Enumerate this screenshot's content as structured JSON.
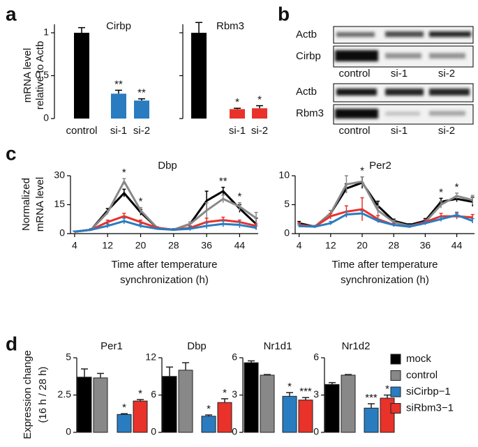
{
  "panel_labels": [
    "a",
    "b",
    "c",
    "d"
  ],
  "blots": [
    {
      "rows": [
        "Actb",
        "Cirbp"
      ],
      "lanes": [
        "control",
        "si-1",
        "si-2"
      ]
    },
    {
      "rows": [
        "Actb",
        "Rbm3"
      ],
      "lanes": [
        "control",
        "si-1",
        "si-2"
      ]
    }
  ],
  "chart_data": [
    {
      "type": "bar",
      "title": "Cirbp",
      "ylabel": [
        "mRNA level",
        "relative to Actb"
      ],
      "categories": [
        "control",
        "si-1",
        "si-2"
      ],
      "values": [
        1.0,
        0.29,
        0.21
      ],
      "errors": [
        0.06,
        0.04,
        0.02
      ],
      "colors": [
        "#000000",
        "#2a7cc0",
        "#2a7cc0"
      ],
      "annotations": [
        null,
        "**",
        "**"
      ],
      "ylim": [
        0,
        1.1
      ],
      "yticks": [
        0,
        0.5,
        1
      ],
      "ytick_labels": true
    },
    {
      "type": "bar",
      "title": "Rbm3",
      "categories": [
        null,
        "si-1",
        "si-2"
      ],
      "values": [
        1.0,
        0.11,
        0.12
      ],
      "errors": [
        0.12,
        0.01,
        0.03
      ],
      "colors": [
        "#000000",
        "#e8322a",
        "#e8322a"
      ],
      "annotations": [
        null,
        "*",
        "*"
      ],
      "ylim": [
        0,
        1.1
      ],
      "yticks": [
        0,
        0.5,
        1
      ],
      "ytick_labels": false
    },
    {
      "type": "line",
      "title": "Dbp",
      "ylabel": [
        "Normalized",
        "mRNA level"
      ],
      "xlabel": [
        "Time after temperature",
        "synchronization (h)"
      ],
      "x": [
        4,
        8,
        12,
        16,
        20,
        24,
        28,
        32,
        36,
        40,
        44,
        48
      ],
      "series": [
        {
          "color": "#000000",
          "values": [
            1,
            2,
            12,
            21,
            11,
            3,
            2,
            5,
            17,
            22,
            13,
            5
          ],
          "errors": [
            0.3,
            0.5,
            1,
            2,
            1.5,
            0.5,
            0.5,
            1,
            5,
            2,
            2,
            3
          ]
        },
        {
          "color": "#888888",
          "values": [
            1,
            2,
            11,
            27,
            12,
            3,
            2,
            5,
            12,
            18,
            14,
            8
          ],
          "errors": [
            0.3,
            0.5,
            1,
            1.5,
            1.5,
            0.5,
            0.5,
            1,
            4,
            2,
            2,
            3
          ]
        },
        {
          "color": "#e8322a",
          "values": [
            1,
            2,
            6,
            9,
            6,
            3,
            2,
            3,
            6,
            7,
            6,
            4
          ],
          "errors": [
            0.3,
            0.5,
            1,
            1.5,
            1,
            0.5,
            0.5,
            1,
            2,
            1.5,
            1,
            1
          ]
        },
        {
          "color": "#2a7cc0",
          "values": [
            1,
            2,
            4,
            6.5,
            4,
            2.5,
            2,
            2.5,
            4,
            5,
            4.5,
            3
          ],
          "errors": [
            0.3,
            0.5,
            1,
            1.5,
            1,
            0.5,
            0.5,
            1,
            1.5,
            1.5,
            1.5,
            1
          ]
        }
      ],
      "annotations": [
        {
          "x": 16,
          "text": "*"
        },
        {
          "x": 20,
          "text": "*"
        },
        {
          "x": 40,
          "text": "**"
        },
        {
          "x": 44,
          "text": "*"
        }
      ],
      "xlim": [
        3,
        48.5
      ],
      "xticks": [
        4,
        12,
        20,
        28,
        36,
        44
      ],
      "ylim": [
        0,
        30
      ],
      "yticks": [
        0,
        15,
        30
      ]
    },
    {
      "type": "line",
      "title": "Per2",
      "xlabel": [
        "Time after temperature",
        "synchronization (h)"
      ],
      "x": [
        4,
        8,
        12,
        16,
        20,
        24,
        28,
        32,
        36,
        40,
        44,
        48
      ],
      "series": [
        {
          "color": "#000000",
          "values": [
            1.8,
            1.2,
            3.5,
            7.8,
            8.8,
            4.8,
            2.2,
            1.5,
            2.2,
            5.5,
            6,
            5.5
          ],
          "errors": [
            0.3,
            0.2,
            0.5,
            0.8,
            1,
            0.8,
            0.3,
            0.2,
            0.4,
            0.6,
            0.5,
            0.8
          ]
        },
        {
          "color": "#888888",
          "values": [
            1.5,
            1.2,
            3.5,
            8.5,
            9,
            4,
            2,
            1.3,
            2,
            5,
            6.5,
            5.8
          ],
          "errors": [
            0.3,
            0.2,
            0.5,
            1.5,
            0.8,
            0.8,
            0.3,
            0.2,
            0.4,
            0.6,
            0.5,
            0.8
          ]
        },
        {
          "color": "#e8322a",
          "values": [
            1.5,
            1.2,
            3,
            3.8,
            4.2,
            2.5,
            1.5,
            1.2,
            2,
            3,
            3,
            2.8
          ],
          "errors": [
            0.3,
            0.2,
            0.5,
            1,
            2,
            0.6,
            0.3,
            0.2,
            0.4,
            0.5,
            0.5,
            0.5
          ]
        },
        {
          "color": "#2a7cc0",
          "values": [
            1.3,
            1.2,
            1.8,
            3.3,
            3.5,
            2.2,
            1.5,
            1.2,
            1.8,
            2.5,
            3.2,
            2.2
          ],
          "errors": [
            0.2,
            0.2,
            0.3,
            0.5,
            0.4,
            0.3,
            0.2,
            0.2,
            0.3,
            0.4,
            0.5,
            0.4
          ]
        }
      ],
      "annotations": [
        {
          "x": 20,
          "text": "*"
        },
        {
          "x": 40,
          "text": "*"
        },
        {
          "x": 44,
          "text": "*"
        }
      ],
      "xlim": [
        3,
        48.5
      ],
      "xticks": [
        4,
        12,
        20,
        28,
        36,
        44
      ],
      "ylim": [
        0,
        10
      ],
      "yticks": [
        0,
        5,
        10
      ]
    },
    {
      "type": "bar",
      "title": "Per1",
      "ylabel": [
        "Expression change",
        "(16 h / 28 h)"
      ],
      "series": [
        {
          "color": "#000000",
          "values": [
            3.7
          ],
          "errors": [
            0.55
          ]
        },
        {
          "color": "#888888",
          "values": [
            3.65
          ],
          "errors": [
            0.3
          ]
        },
        {
          "color": "#2a7cc0",
          "values": [
            1.2
          ],
          "errors": [
            0.05
          ]
        },
        {
          "color": "#e8322a",
          "values": [
            2.1
          ],
          "errors": [
            0.1
          ]
        }
      ],
      "annotations": [
        null,
        null,
        "*",
        "*"
      ],
      "ylim": [
        0,
        5
      ],
      "yticks": [
        0,
        2.5,
        5
      ],
      "ytick_labels": true
    },
    {
      "type": "bar",
      "title": "Dbp",
      "series": [
        {
          "color": "#000000",
          "values": [
            9
          ],
          "errors": [
            1.5
          ]
        },
        {
          "color": "#888888",
          "values": [
            10
          ],
          "errors": [
            1.2
          ]
        },
        {
          "color": "#2a7cc0",
          "values": [
            2.6
          ],
          "errors": [
            0.2
          ]
        },
        {
          "color": "#e8322a",
          "values": [
            4.8
          ],
          "errors": [
            0.6
          ]
        }
      ],
      "annotations": [
        null,
        null,
        "*",
        "*"
      ],
      "ylim": [
        0,
        12
      ],
      "yticks": [
        0,
        6,
        12
      ],
      "ytick_labels": true
    },
    {
      "type": "bar",
      "title": "Nr1d1",
      "series": [
        {
          "color": "#000000",
          "values": [
            5.6
          ],
          "errors": [
            0.15
          ]
        },
        {
          "color": "#888888",
          "values": [
            4.6
          ],
          "errors": [
            0.05
          ]
        },
        {
          "color": "#2a7cc0",
          "values": [
            2.9
          ],
          "errors": [
            0.3
          ]
        },
        {
          "color": "#e8322a",
          "values": [
            2.6
          ],
          "errors": [
            0.2
          ]
        }
      ],
      "annotations": [
        null,
        null,
        "*",
        "***"
      ],
      "ylim": [
        0,
        6
      ],
      "yticks": [
        0,
        3,
        6
      ],
      "ytick_labels": true
    },
    {
      "type": "bar",
      "title": "Nr1d2",
      "series": [
        {
          "name": "mock",
          "color": "#000000",
          "values": [
            3.85
          ],
          "errors": [
            0.15
          ]
        },
        {
          "name": "control",
          "color": "#888888",
          "values": [
            4.6
          ],
          "errors": [
            0.05
          ]
        },
        {
          "name": "siCirbp−1",
          "color": "#2a7cc0",
          "values": [
            1.95
          ],
          "errors": [
            0.35
          ]
        },
        {
          "name": "siRbm3−1",
          "color": "#e8322a",
          "values": [
            2.75
          ],
          "errors": [
            0.25
          ]
        }
      ],
      "annotations": [
        null,
        null,
        "***",
        "*"
      ],
      "ylim": [
        0,
        6
      ],
      "yticks": [
        0,
        3,
        6
      ],
      "ytick_labels": true,
      "legend": "right"
    }
  ]
}
